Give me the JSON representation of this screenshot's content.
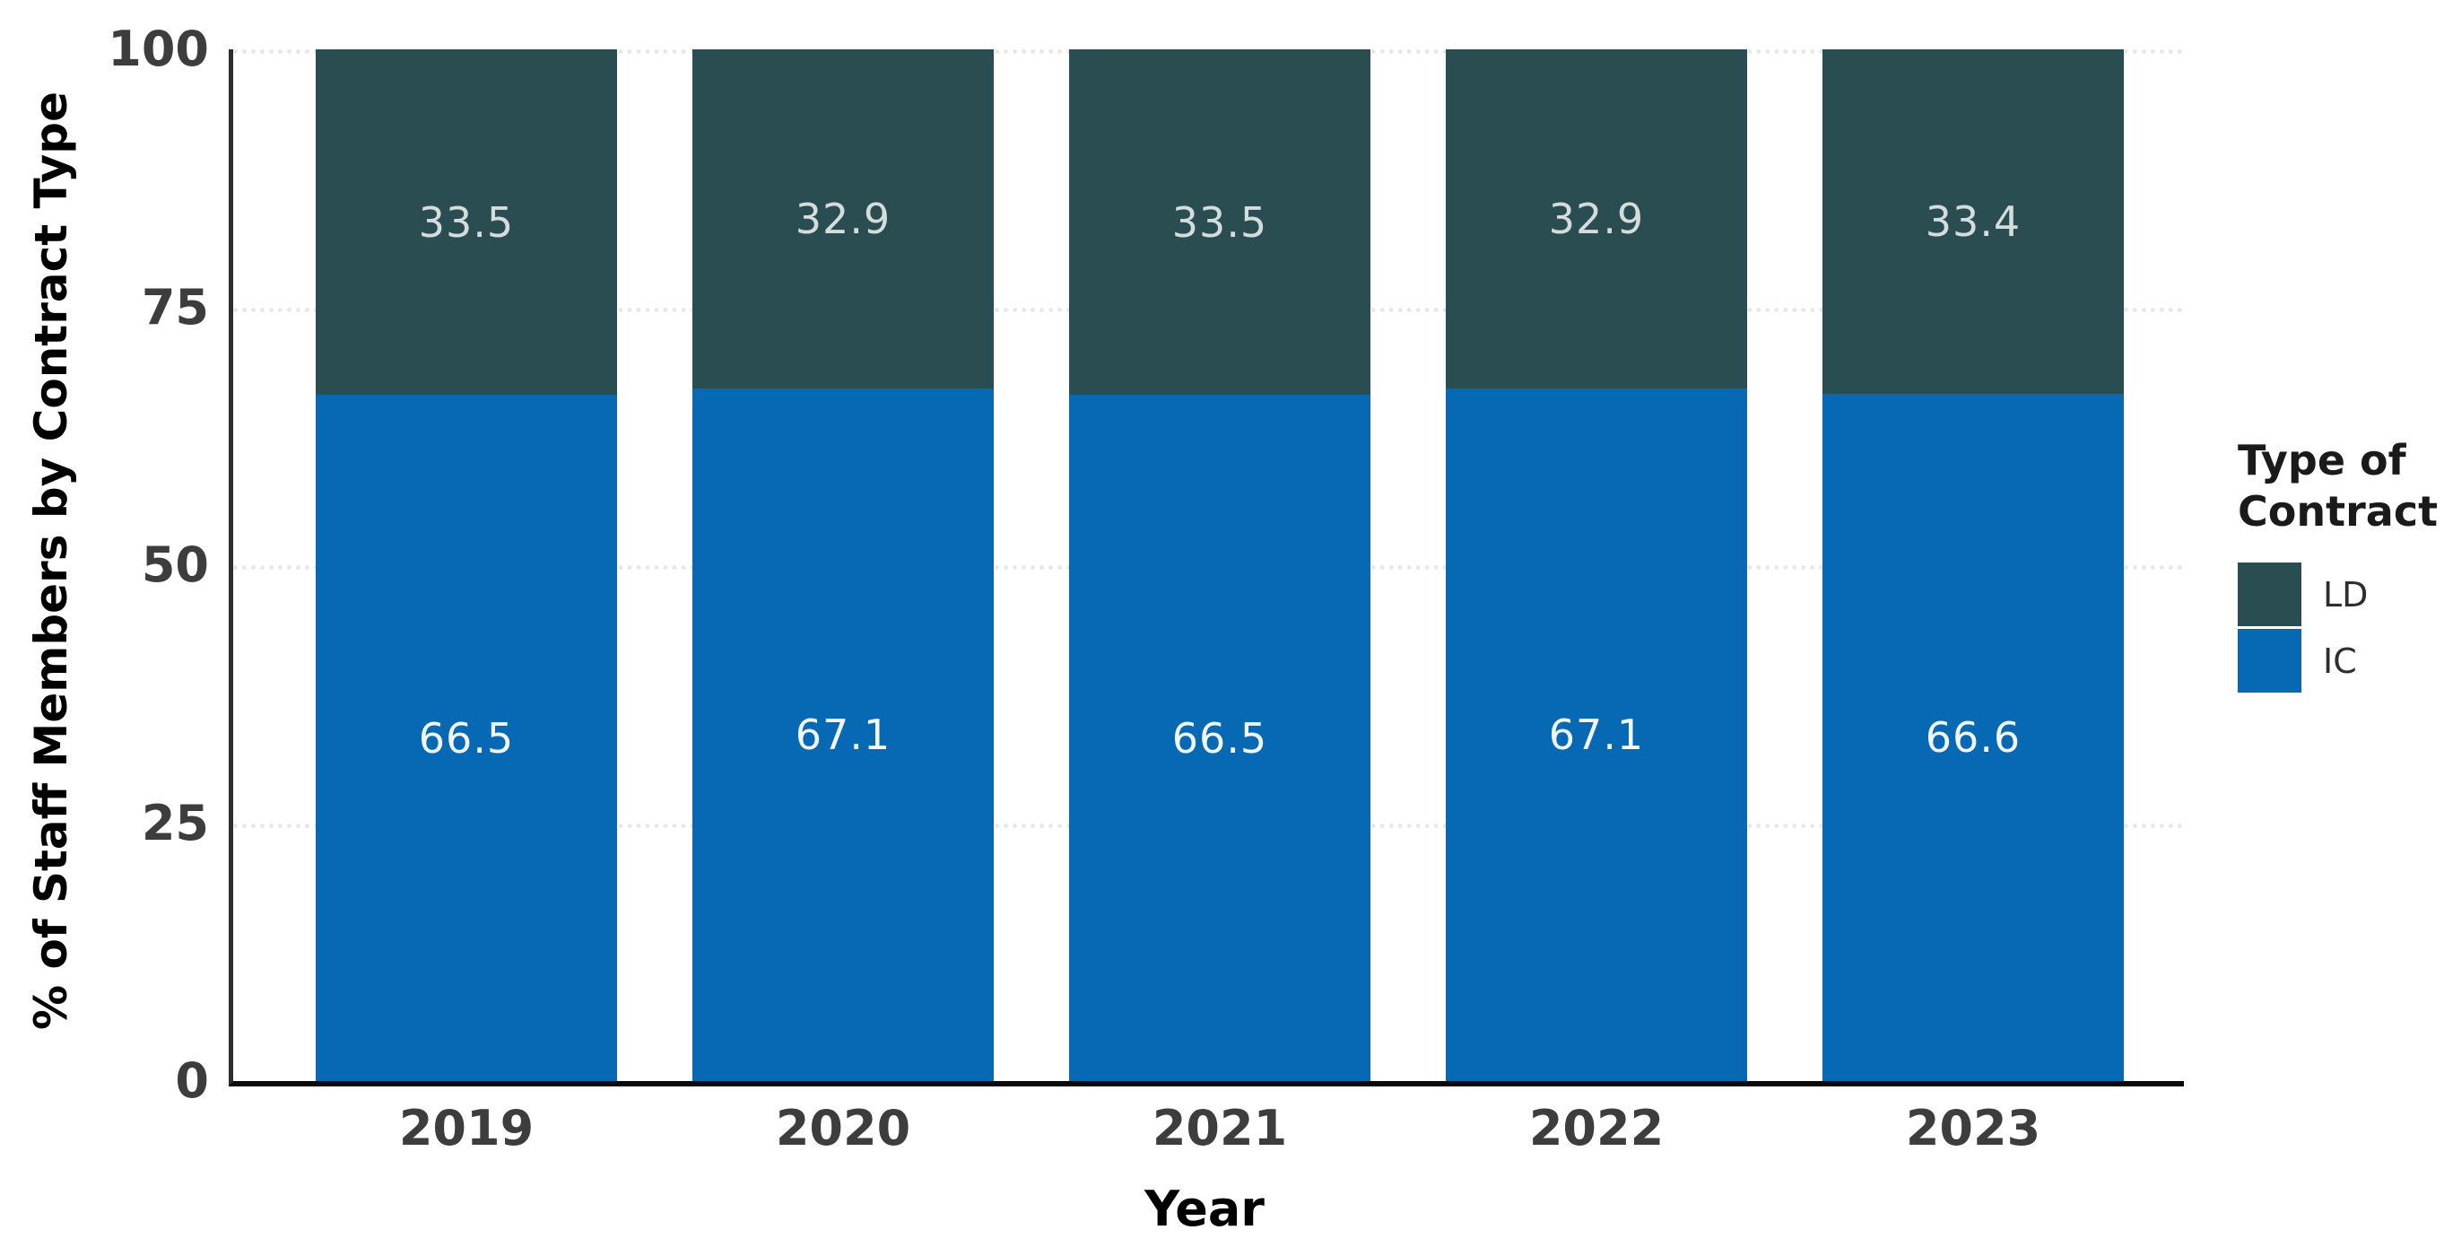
{
  "chart_data": {
    "type": "bar",
    "stacked": true,
    "orientation": "vertical",
    "xlabel": "Year",
    "ylabel": "% of Staff Members by Contract Type",
    "categories": [
      "2019",
      "2020",
      "2021",
      "2022",
      "2023"
    ],
    "series": [
      {
        "name": "LD",
        "color": "#2A4D52",
        "label_color": "#d5dcdc",
        "values": [
          33.5,
          32.9,
          33.5,
          32.9,
          33.4
        ]
      },
      {
        "name": "IC",
        "color": "#0768B3",
        "label_color": "#f2f7fb",
        "values": [
          66.5,
          67.1,
          66.5,
          67.1,
          66.6
        ]
      }
    ],
    "stack_order_bottom_to_top": [
      "IC",
      "LD"
    ],
    "ylim": [
      0,
      100
    ],
    "yticks": [
      0,
      25,
      50,
      75,
      100
    ],
    "grid": "horizontal dotted lines at yticks",
    "legend": {
      "position": "right",
      "title_line1": "Type of",
      "title_line2": "Contract",
      "entries": [
        "LD",
        "IC"
      ]
    }
  },
  "colors": {
    "ld": "#2A4D52",
    "ic": "#0768B3",
    "axis_text": "#3d3d3d",
    "axis_title": "#000000",
    "gridline": "#e8e8e8",
    "spine_left": "#2e2e2e",
    "spine_bottom": "#0a0a0a",
    "background": "#ffffff"
  }
}
